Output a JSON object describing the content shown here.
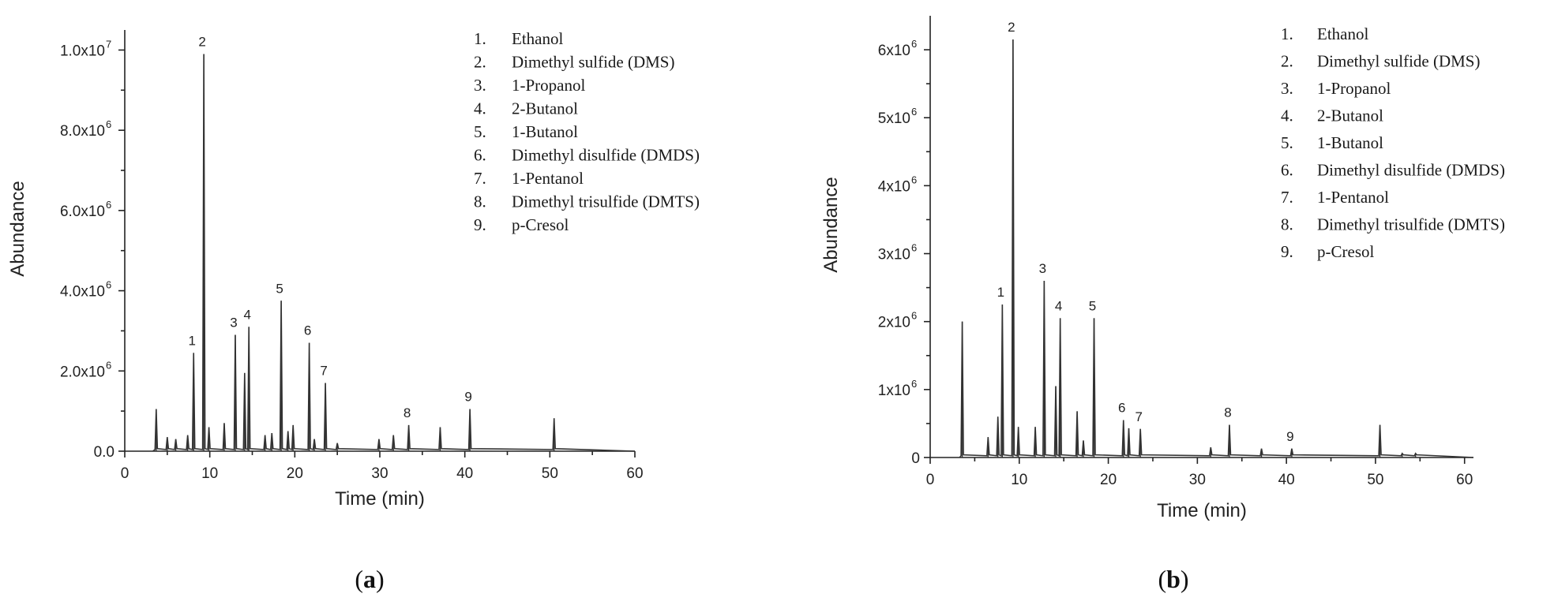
{
  "chart_data": [
    {
      "panel_label_prefix": "(",
      "panel_label_letter": "a",
      "panel_label_suffix": ")",
      "type": "line",
      "xlabel": "Time (min)",
      "ylabel": "Abundance",
      "xlim": [
        0,
        60
      ],
      "ylim": [
        0,
        10500000
      ],
      "x_ticks": [
        "0",
        "10",
        "20",
        "30",
        "40",
        "50",
        "60"
      ],
      "y_ticks": [
        {
          "value": 0,
          "base": "0.0",
          "exp": ""
        },
        {
          "value": 2000000,
          "base": "2.0x10",
          "exp": "6"
        },
        {
          "value": 4000000,
          "base": "4.0x10",
          "exp": "6"
        },
        {
          "value": 6000000,
          "base": "6.0x10",
          "exp": "6"
        },
        {
          "value": 8000000,
          "base": "8.0x10",
          "exp": "6"
        },
        {
          "value": 10000000,
          "base": "1.0x10",
          "exp": "7"
        }
      ],
      "legend": [
        {
          "num": "1.",
          "name": "Ethanol"
        },
        {
          "num": "2.",
          "name": "Dimethyl sulfide (DMS)"
        },
        {
          "num": "3.",
          "name": "1-Propanol"
        },
        {
          "num": "4.",
          "name": "2-Butanol"
        },
        {
          "num": "5.",
          "name": "1-Butanol"
        },
        {
          "num": "6.",
          "name": "Dimethyl disulfide (DMDS)"
        },
        {
          "num": "7.",
          "name": "1-Pentanol"
        },
        {
          "num": "8.",
          "name": "Dimethyl trisulfide (DMTS)"
        },
        {
          "num": "9.",
          "name": "p-Cresol"
        }
      ],
      "labeled_peaks": [
        {
          "label": "1",
          "x": 8.1,
          "y": 2450000
        },
        {
          "label": "2",
          "x": 9.3,
          "y": 9900000
        },
        {
          "label": "3",
          "x": 13.0,
          "y": 2900000
        },
        {
          "label": "4",
          "x": 14.6,
          "y": 3100000
        },
        {
          "label": "5",
          "x": 18.4,
          "y": 3750000
        },
        {
          "label": "6",
          "x": 21.7,
          "y": 2700000
        },
        {
          "label": "7",
          "x": 23.6,
          "y": 1700000
        },
        {
          "label": "8",
          "x": 33.4,
          "y": 650000
        },
        {
          "label": "9",
          "x": 40.6,
          "y": 1050000
        }
      ],
      "other_peaks": [
        {
          "x": 3.7,
          "y": 1050000
        },
        {
          "x": 5.0,
          "y": 350000
        },
        {
          "x": 6.0,
          "y": 300000
        },
        {
          "x": 7.4,
          "y": 400000
        },
        {
          "x": 9.9,
          "y": 600000
        },
        {
          "x": 11.7,
          "y": 700000
        },
        {
          "x": 14.1,
          "y": 1950000
        },
        {
          "x": 16.5,
          "y": 400000
        },
        {
          "x": 17.3,
          "y": 450000
        },
        {
          "x": 19.2,
          "y": 500000
        },
        {
          "x": 19.8,
          "y": 650000
        },
        {
          "x": 22.3,
          "y": 300000
        },
        {
          "x": 25.0,
          "y": 200000
        },
        {
          "x": 29.9,
          "y": 300000
        },
        {
          "x": 31.6,
          "y": 400000
        },
        {
          "x": 37.1,
          "y": 600000
        },
        {
          "x": 50.5,
          "y": 820000
        }
      ]
    },
    {
      "panel_label_prefix": "(",
      "panel_label_letter": "b",
      "panel_label_suffix": ")",
      "type": "line",
      "xlabel": "Time (min)",
      "ylabel": "Abundance",
      "xlim": [
        0,
        61
      ],
      "ylim": [
        0,
        6500000
      ],
      "x_ticks": [
        "0",
        "10",
        "20",
        "30",
        "40",
        "50",
        "60"
      ],
      "y_ticks": [
        {
          "value": 0,
          "base": "0",
          "exp": ""
        },
        {
          "value": 1000000,
          "base": "1x10",
          "exp": "6"
        },
        {
          "value": 2000000,
          "base": "2x10",
          "exp": "6"
        },
        {
          "value": 3000000,
          "base": "3x10",
          "exp": "6"
        },
        {
          "value": 4000000,
          "base": "4x10",
          "exp": "6"
        },
        {
          "value": 5000000,
          "base": "5x10",
          "exp": "6"
        },
        {
          "value": 6000000,
          "base": "6x10",
          "exp": "6"
        }
      ],
      "legend": [
        {
          "num": "1.",
          "name": "Ethanol"
        },
        {
          "num": "2.",
          "name": "Dimethyl sulfide (DMS)"
        },
        {
          "num": "3.",
          "name": "1-Propanol"
        },
        {
          "num": "4.",
          "name": "2-Butanol"
        },
        {
          "num": "5.",
          "name": "1-Butanol"
        },
        {
          "num": "6.",
          "name": "Dimethyl disulfide (DMDS)"
        },
        {
          "num": "7.",
          "name": "1-Pentanol"
        },
        {
          "num": "8.",
          "name": "Dimethyl trisulfide (DMTS)"
        },
        {
          "num": "9.",
          "name": "p-Cresol"
        }
      ],
      "labeled_peaks": [
        {
          "label": "1",
          "x": 8.1,
          "y": 2250000
        },
        {
          "label": "2",
          "x": 9.3,
          "y": 6150000
        },
        {
          "label": "3",
          "x": 12.8,
          "y": 2600000
        },
        {
          "label": "4",
          "x": 14.6,
          "y": 2050000
        },
        {
          "label": "5",
          "x": 18.4,
          "y": 2050000
        },
        {
          "label": "6",
          "x": 21.7,
          "y": 550000
        },
        {
          "label": "7",
          "x": 23.6,
          "y": 420000
        },
        {
          "label": "8",
          "x": 33.6,
          "y": 480000
        },
        {
          "label": "9",
          "x": 40.6,
          "y": 130000
        }
      ],
      "other_peaks": [
        {
          "x": 3.6,
          "y": 2000000
        },
        {
          "x": 6.5,
          "y": 300000
        },
        {
          "x": 7.6,
          "y": 600000
        },
        {
          "x": 9.9,
          "y": 450000
        },
        {
          "x": 11.8,
          "y": 450000
        },
        {
          "x": 14.1,
          "y": 1050000
        },
        {
          "x": 16.5,
          "y": 680000
        },
        {
          "x": 17.2,
          "y": 250000
        },
        {
          "x": 22.3,
          "y": 430000
        },
        {
          "x": 31.5,
          "y": 150000
        },
        {
          "x": 37.2,
          "y": 130000
        },
        {
          "x": 50.5,
          "y": 480000
        },
        {
          "x": 53.0,
          "y": 60000
        },
        {
          "x": 54.5,
          "y": 60000
        }
      ]
    }
  ]
}
